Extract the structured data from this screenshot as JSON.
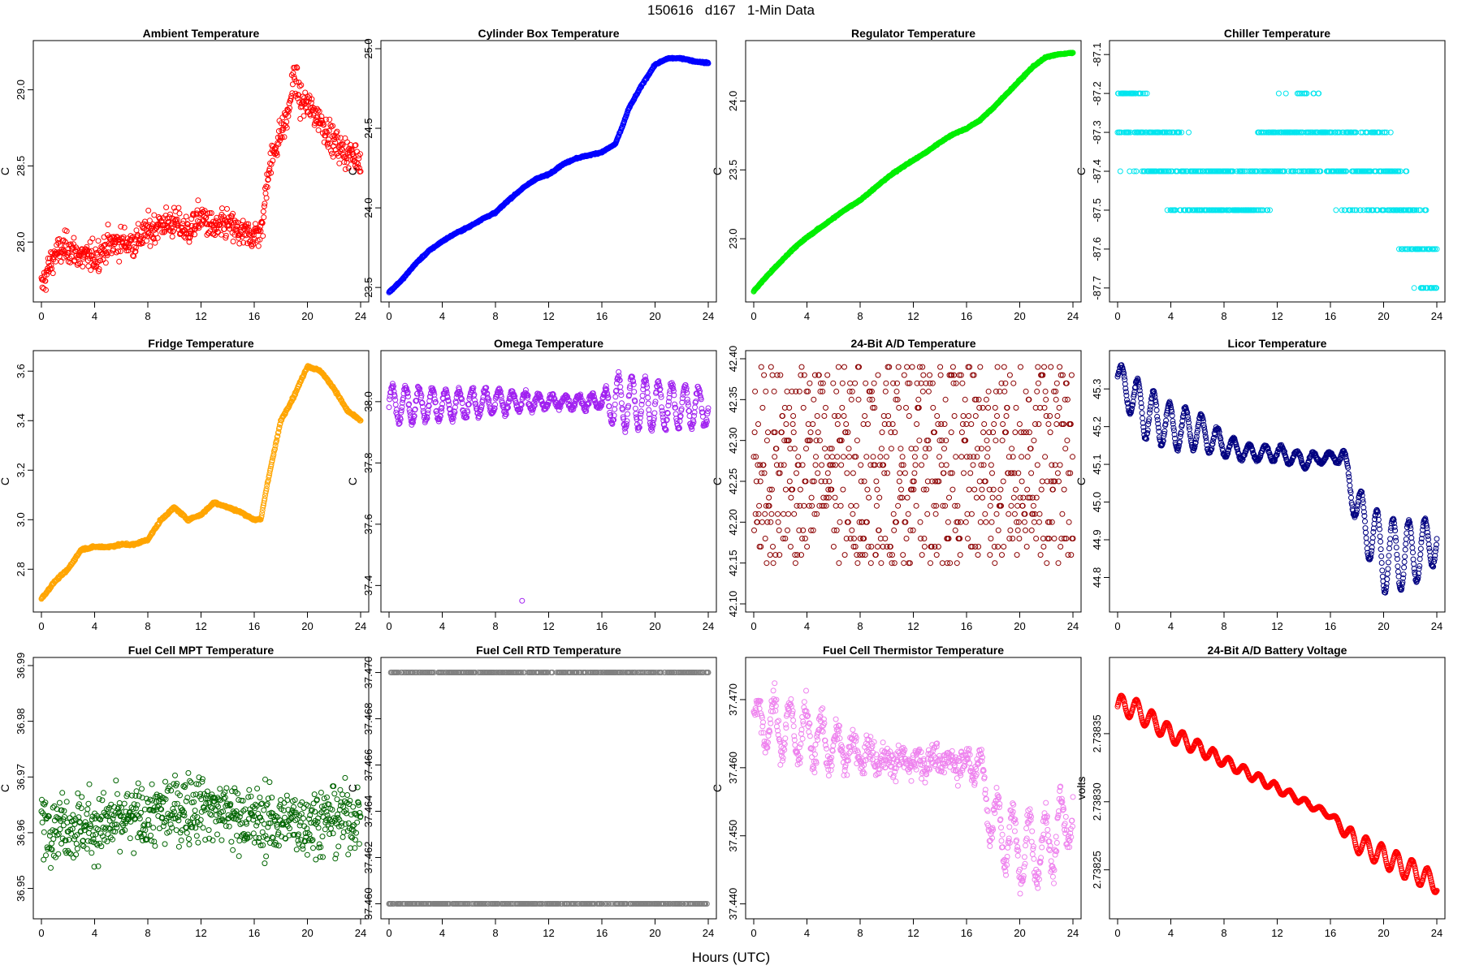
{
  "title": "150616   d167   1-Min Data",
  "x_axis_title": "Hours (UTC)",
  "chart_data": [
    {
      "type": "scatter",
      "title": "Ambient Temperature",
      "ylabel": "C",
      "color": "#ff0000",
      "xlim": [
        0,
        24
      ],
      "ylim": [
        27.66,
        29.27
      ],
      "xticks": [
        "0",
        "4",
        "8",
        "12",
        "16",
        "20",
        "24"
      ],
      "yticks": [
        "28.0",
        "28.5",
        "29.0"
      ],
      "x": [
        0,
        0.5,
        1,
        2,
        3,
        4,
        5,
        6,
        7,
        8,
        9,
        10,
        11,
        12,
        13,
        14,
        15,
        16,
        16.6,
        17,
        17.5,
        18,
        18.5,
        19,
        19.5,
        20,
        21,
        22,
        23,
        24
      ],
      "y": [
        27.7,
        27.82,
        27.92,
        27.97,
        27.9,
        27.9,
        27.98,
        28.0,
        28.0,
        28.07,
        28.12,
        28.13,
        28.07,
        28.17,
        28.08,
        28.12,
        28.05,
        28.05,
        28.08,
        28.45,
        28.6,
        28.72,
        28.82,
        29.1,
        28.92,
        28.9,
        28.8,
        28.65,
        28.58,
        28.55
      ],
      "spread": 0.09
    },
    {
      "type": "scatter",
      "title": "Cylinder Box Temperature",
      "ylabel": "C",
      "color": "#0000ff",
      "xlim": [
        0,
        24
      ],
      "ylim": [
        23.46,
        25.0
      ],
      "xticks": [
        "0",
        "4",
        "8",
        "12",
        "16",
        "20",
        "24"
      ],
      "yticks": [
        "23.5",
        "24.0",
        "24.5",
        "25.0"
      ],
      "x": [
        0,
        1,
        2,
        3,
        4,
        5,
        6,
        7,
        8,
        9,
        10,
        11,
        12,
        13,
        14,
        15,
        16,
        17,
        17.5,
        18,
        19,
        20,
        21,
        22,
        23,
        24
      ],
      "y": [
        23.47,
        23.55,
        23.65,
        23.73,
        23.79,
        23.84,
        23.88,
        23.93,
        23.97,
        24.05,
        24.12,
        24.18,
        24.21,
        24.27,
        24.31,
        24.33,
        24.35,
        24.4,
        24.5,
        24.62,
        24.77,
        24.9,
        24.94,
        24.94,
        24.92,
        24.91
      ],
      "spread": 0.004
    },
    {
      "type": "scatter",
      "title": "Regulator Temperature",
      "ylabel": "C",
      "color": "#00ee00",
      "xlim": [
        0,
        24
      ],
      "ylim": [
        22.6,
        24.38
      ],
      "xticks": [
        "0",
        "4",
        "8",
        "12",
        "16",
        "20",
        "24"
      ],
      "yticks": [
        "23.0",
        "23.5",
        "24.0"
      ],
      "x": [
        0,
        1,
        2,
        3,
        4,
        5,
        6,
        7,
        8,
        9,
        10,
        11,
        12,
        13,
        14,
        15,
        16,
        17,
        18,
        19,
        20,
        21,
        22,
        23,
        24
      ],
      "y": [
        22.62,
        22.73,
        22.83,
        22.93,
        23.01,
        23.08,
        23.15,
        23.22,
        23.28,
        23.36,
        23.44,
        23.51,
        23.57,
        23.63,
        23.7,
        23.76,
        23.8,
        23.86,
        23.95,
        24.05,
        24.15,
        24.25,
        24.32,
        24.34,
        24.35
      ],
      "spread": 0.004
    },
    {
      "type": "scatter",
      "title": "Chiller Temperature",
      "ylabel": "C",
      "color": "#00e5ee",
      "xlim": [
        0,
        24
      ],
      "ylim": [
        -87.715,
        -87.085
      ],
      "xticks": [
        "0",
        "4",
        "8",
        "12",
        "16",
        "20",
        "24"
      ],
      "yticks": [
        "-87.7",
        "-87.6",
        "-87.5",
        "-87.4",
        "-87.3",
        "-87.2",
        "-87.1"
      ],
      "x": [
        0,
        2,
        4,
        6,
        8,
        10,
        12,
        14,
        16,
        18,
        20,
        22,
        24
      ],
      "y": [
        -87.25,
        -87.3,
        -87.4,
        -87.45,
        -87.45,
        -87.45,
        -87.35,
        -87.3,
        -87.35,
        -87.4,
        -87.4,
        -87.55,
        -87.65
      ],
      "spread": 0,
      "quant": 0.1,
      "noise": 0.1
    },
    {
      "type": "scatter",
      "title": "Fridge Temperature",
      "ylabel": "C",
      "color": "#ffa500",
      "xlim": [
        0,
        24
      ],
      "ylim": [
        2.66,
        3.65
      ],
      "xticks": [
        "0",
        "4",
        "8",
        "12",
        "16",
        "20",
        "24"
      ],
      "yticks": [
        "2.8",
        "3.0",
        "3.2",
        "3.4",
        "3.6"
      ],
      "x": [
        0,
        1,
        2,
        3,
        4,
        5,
        6,
        7,
        8,
        9,
        10,
        11,
        12,
        13,
        14,
        15,
        16,
        16.5,
        17,
        18,
        19,
        20,
        21,
        22,
        23,
        24
      ],
      "y": [
        2.68,
        2.75,
        2.8,
        2.88,
        2.89,
        2.89,
        2.9,
        2.9,
        2.92,
        3.0,
        3.05,
        3.0,
        3.02,
        3.07,
        3.05,
        3.03,
        3.0,
        3.0,
        3.15,
        3.4,
        3.5,
        3.62,
        3.6,
        3.53,
        3.44,
        3.4
      ],
      "spread": 0.004
    },
    {
      "type": "scatter",
      "title": "Omega Temperature",
      "ylabel": "C",
      "color": "#a020f0",
      "xlim": [
        0,
        24
      ],
      "ylim": [
        37.34,
        38.14
      ],
      "xticks": [
        "0",
        "4",
        "8",
        "12",
        "16",
        "20",
        "24"
      ],
      "yticks": [
        "37.4",
        "37.6",
        "37.8",
        "38.0"
      ],
      "x": [
        0,
        4,
        8,
        12,
        16,
        17,
        20,
        24
      ],
      "y": [
        37.99,
        37.99,
        38.0,
        38.0,
        38.0,
        38.0,
        37.99,
        37.98
      ],
      "amp": [
        0.06,
        0.05,
        0.04,
        0.02,
        0.02,
        0.09,
        0.08,
        0.06
      ],
      "period": 1.0,
      "spread": 0.01,
      "outlier": [
        10,
        37.35
      ]
    },
    {
      "type": "scatter",
      "title": "24-Bit A/D Temperature",
      "ylabel": "C",
      "color": "#8b0000",
      "xlim": [
        0,
        24
      ],
      "ylim": [
        42.1,
        42.4
      ],
      "xticks": [
        "0",
        "4",
        "8",
        "12",
        "16",
        "20",
        "24"
      ],
      "yticks": [
        "42.10",
        "42.15",
        "42.20",
        "42.25",
        "42.30",
        "42.35",
        "42.40"
      ],
      "x": [
        0,
        24
      ],
      "y": [
        42.27,
        42.27
      ],
      "spread": 0,
      "quant": 0.01,
      "noise": 0.12
    },
    {
      "type": "scatter",
      "title": "Licor Temperature",
      "ylabel": "C",
      "color": "#000080",
      "xlim": [
        0,
        24
      ],
      "ylim": [
        44.73,
        45.38
      ],
      "xticks": [
        "0",
        "4",
        "8",
        "12",
        "16",
        "20",
        "24"
      ],
      "yticks": [
        "44.8",
        "44.9",
        "45.0",
        "45.1",
        "45.2",
        "45.3"
      ],
      "x": [
        0,
        2,
        4,
        6,
        8,
        10,
        12,
        14,
        16,
        17,
        18,
        20,
        22,
        24
      ],
      "y": [
        45.33,
        45.24,
        45.2,
        45.19,
        45.15,
        45.13,
        45.13,
        45.11,
        45.12,
        45.12,
        44.98,
        44.86,
        44.86,
        44.9
      ],
      "amp": [
        0.04,
        0.07,
        0.06,
        0.05,
        0.03,
        0.02,
        0.02,
        0.02,
        0.01,
        0.02,
        0.06,
        0.1,
        0.09,
        0.06
      ],
      "period": 1.2,
      "spread": 0.004
    },
    {
      "type": "scatter",
      "title": "Fuel Cell MPT Temperature",
      "ylabel": "C",
      "color": "#006400",
      "xlim": [
        0,
        24
      ],
      "ylim": [
        36.946,
        36.99
      ],
      "xticks": [
        "0",
        "4",
        "8",
        "12",
        "16",
        "20",
        "24"
      ],
      "yticks": [
        "36.95",
        "36.96",
        "36.97",
        "36.98",
        "36.99"
      ],
      "x": [
        0,
        4,
        8,
        12,
        16,
        20,
        24
      ],
      "y": [
        36.962,
        36.961,
        36.963,
        36.965,
        36.962,
        36.962,
        36.963
      ],
      "spread": 0.0055
    },
    {
      "type": "scatter",
      "title": "Fuel Cell RTD Temperature",
      "ylabel": "C",
      "color": "#808080",
      "xlim": [
        0,
        24
      ],
      "ylim": [
        37.4597,
        37.4703
      ],
      "xticks": [
        "0",
        "4",
        "8",
        "12",
        "16",
        "20",
        "24"
      ],
      "yticks": [
        "37.460",
        "37.462",
        "37.464",
        "37.466",
        "37.468",
        "37.470"
      ],
      "x": [
        0,
        24
      ],
      "y": [
        37.465,
        37.465
      ],
      "spread": 0,
      "binary": [
        37.46,
        37.47
      ]
    },
    {
      "type": "scatter",
      "title": "Fuel Cell Thermistor Temperature",
      "ylabel": "C",
      "color": "#ee82ee",
      "xlim": [
        0,
        24
      ],
      "ylim": [
        37.439,
        37.475
      ],
      "xticks": [
        "0",
        "4",
        "8",
        "12",
        "16",
        "20",
        "24"
      ],
      "yticks": [
        "37.440",
        "37.450",
        "37.460",
        "37.470"
      ],
      "x": [
        0,
        2,
        4,
        6,
        8,
        10,
        12,
        14,
        16,
        17,
        18,
        20,
        22,
        24
      ],
      "y": [
        37.467,
        37.466,
        37.465,
        37.463,
        37.462,
        37.461,
        37.461,
        37.461,
        37.461,
        37.46,
        37.452,
        37.448,
        37.448,
        37.454
      ],
      "amp": [
        0.003,
        0.004,
        0.004,
        0.003,
        0.002,
        0.001,
        0.001,
        0.001,
        0.001,
        0.003,
        0.004,
        0.005,
        0.005,
        0.004
      ],
      "period": 1.2,
      "spread": 0.0018
    },
    {
      "type": "scatter",
      "title": "24-Bit A/D Battery Voltage",
      "ylabel": "volts",
      "color": "#ff0000",
      "xlim": [
        0,
        24
      ],
      "ylim": [
        2.73822,
        2.7384
      ],
      "xticks": [
        "0",
        "4",
        "8",
        "12",
        "16",
        "20",
        "24"
      ],
      "yticks": [
        "2.73825",
        "2.73830",
        "2.73835"
      ],
      "x": [
        0,
        1,
        4,
        8,
        12,
        16,
        18,
        20,
        22,
        24
      ],
      "y": [
        2.73837,
        2.73837,
        2.73835,
        2.73833,
        2.73831,
        2.73829,
        2.73827,
        2.73826,
        2.73825,
        2.73824
      ],
      "amp": [
        8e-06,
        8e-06,
        6e-06,
        4e-06,
        3e-06,
        2e-06,
        7e-06,
        8e-06,
        8e-06,
        7e-06
      ],
      "period": 1.15,
      "spread": 3e-07
    }
  ]
}
